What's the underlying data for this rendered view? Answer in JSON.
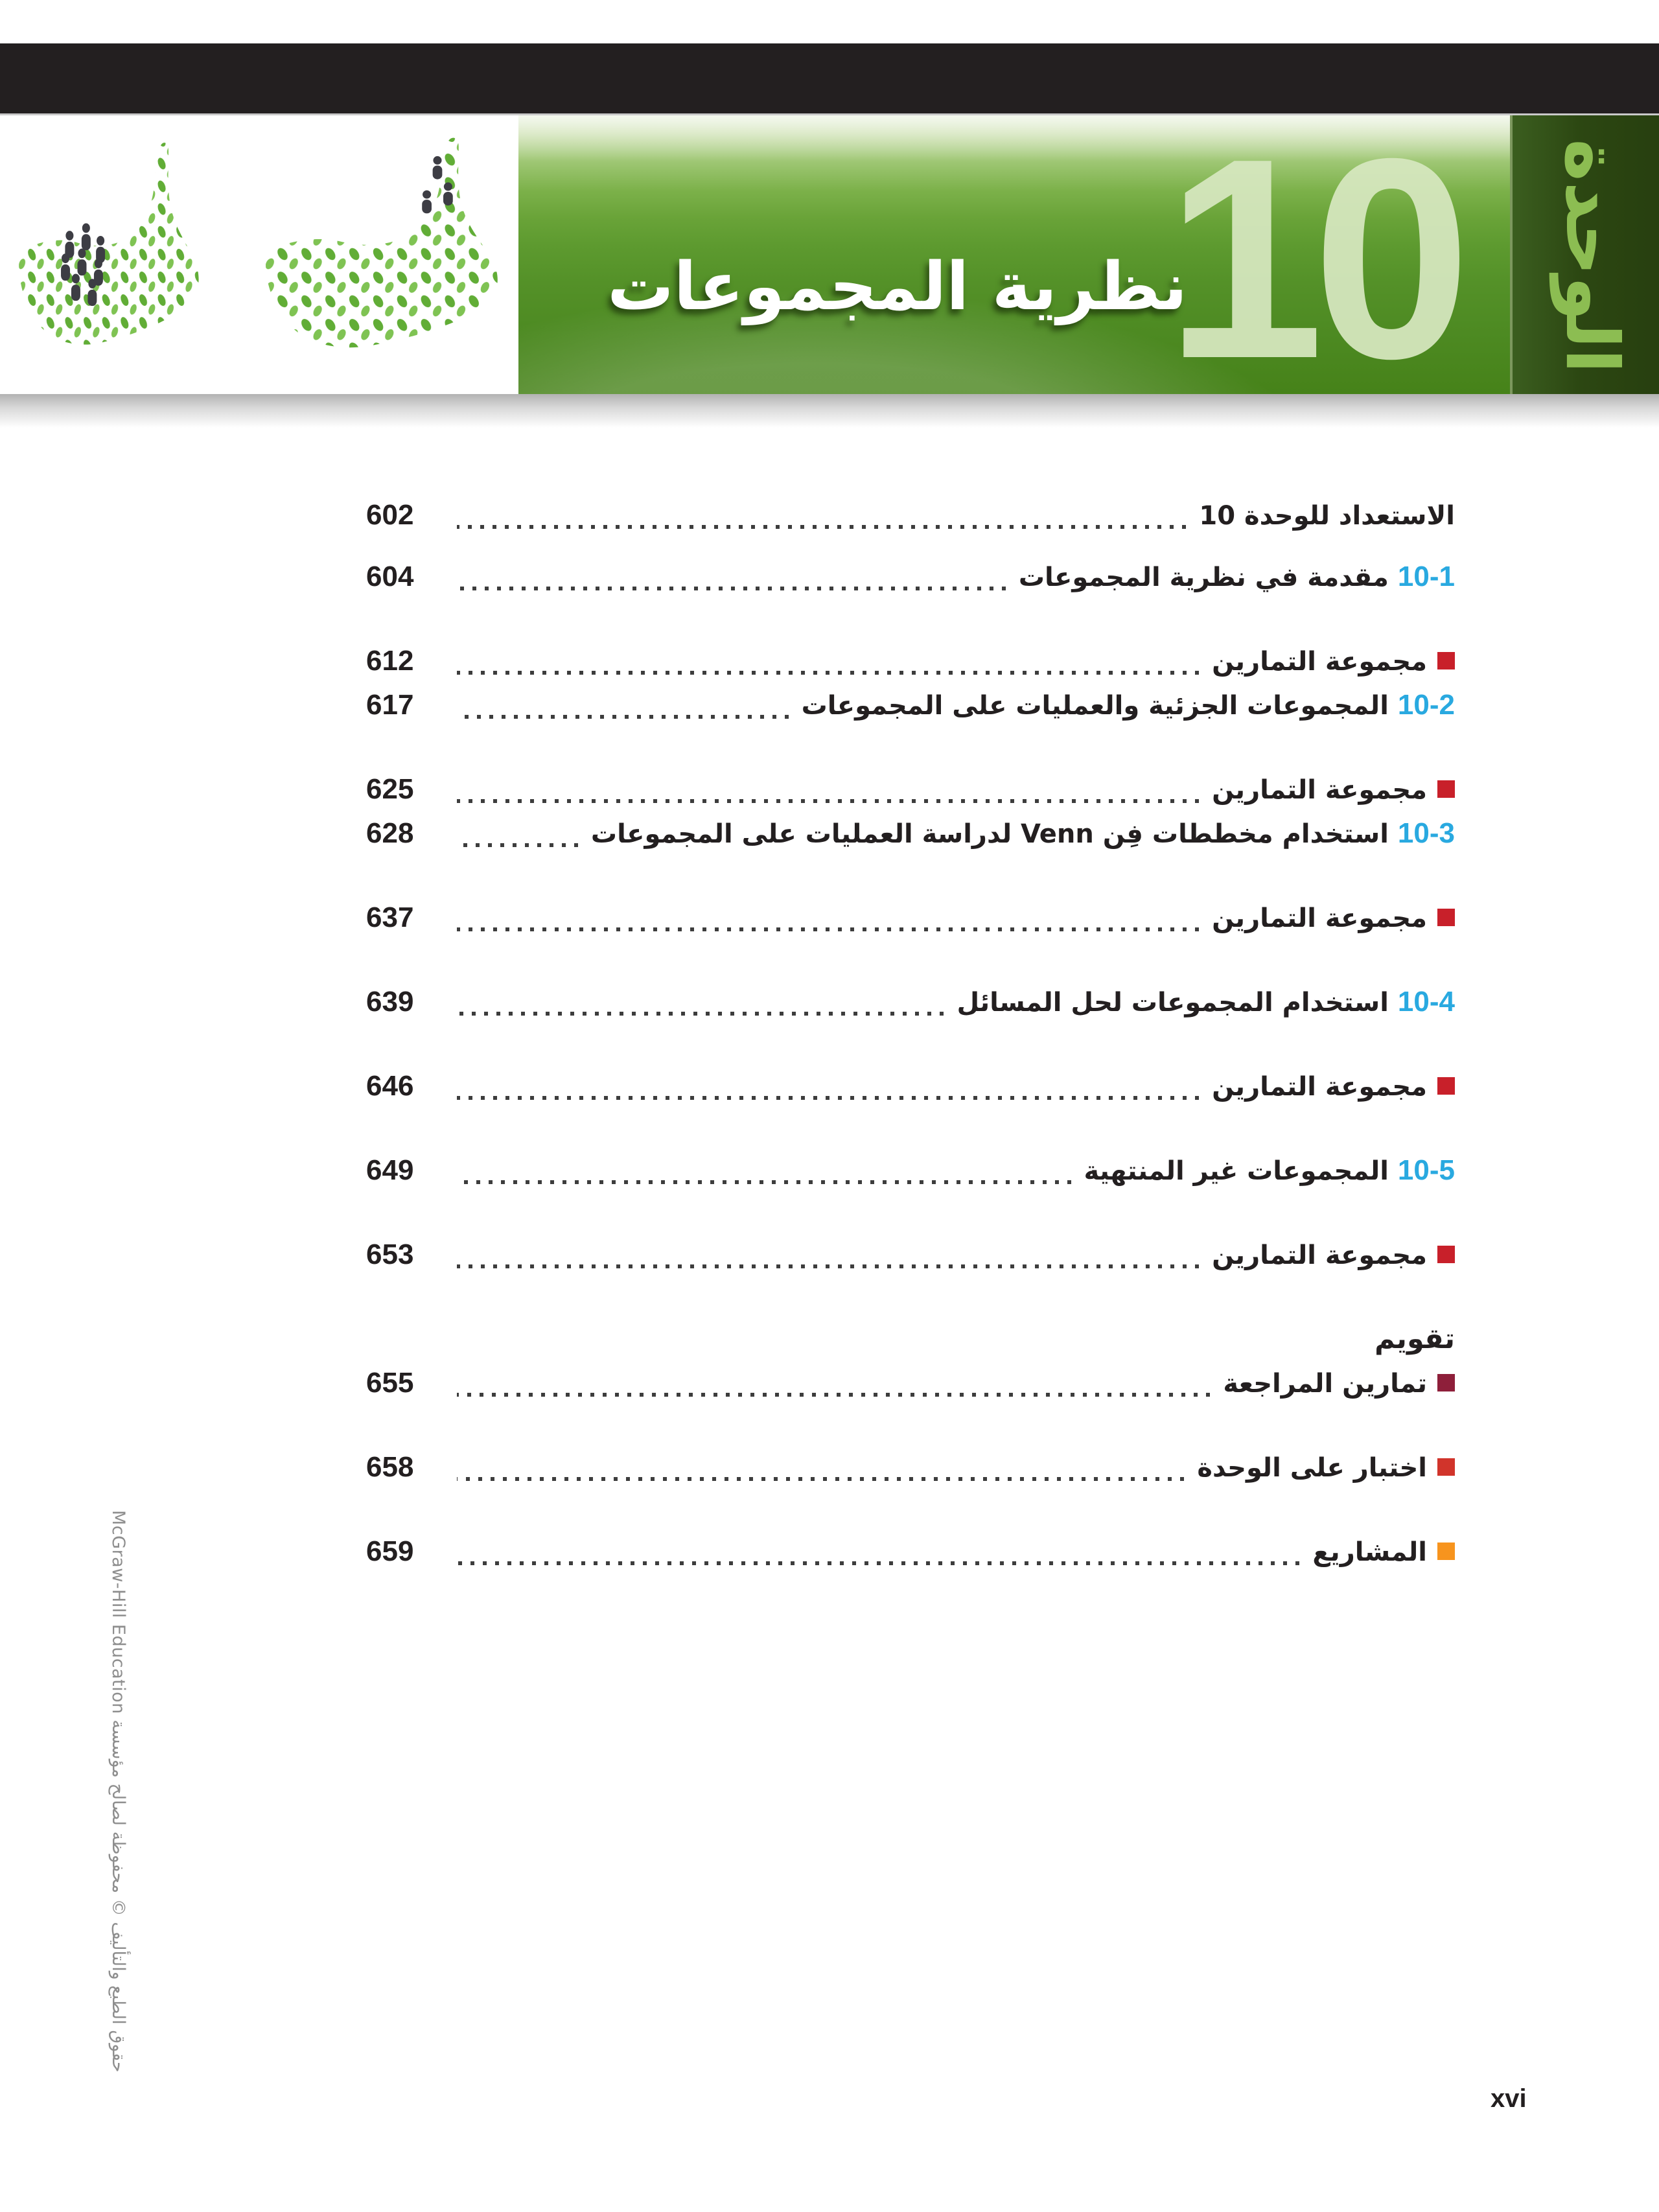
{
  "header": {
    "unit_label": "الوحدة",
    "unit_number": "10",
    "title": "نظرية المجموعات",
    "map_graphic": "uae-map-made-of-green-leaves-and-people"
  },
  "colors": {
    "black_bar": "#231f20",
    "banner_green": "#539027",
    "banner_light_green": "#e7f1da",
    "big_number_green": "#d7e8c0",
    "tab_green_dark": "#2c4712",
    "tab_label_green": "#8cbd52",
    "section_number_blue": "#29a9e0",
    "bullet_red": "#c8202a",
    "bullet_maroon": "#8e1f3a",
    "bullet_orange_red": "#d1342b",
    "bullet_orange": "#f7941e"
  },
  "toc": {
    "rows": [
      {
        "type": "plain",
        "label": "الاستعداد للوحدة 10",
        "page": "602"
      },
      {
        "type": "section",
        "number": "10-1",
        "label": "مقدمة في نظرية المجموعات",
        "page": "604",
        "gap": "after-first"
      },
      {
        "type": "exercise",
        "label": "مجموعة التمارين",
        "page": "612",
        "bullet": "#c8202a"
      },
      {
        "type": "section",
        "number": "10-2",
        "label": "المجموعات الجزئية والعمليات على المجموعات",
        "page": "617",
        "gap": "tight"
      },
      {
        "type": "exercise",
        "label": "مجموعة التمارين",
        "page": "625",
        "bullet": "#c8202a"
      },
      {
        "type": "section",
        "number": "10-3",
        "label": "استخدام مخططات فِن Venn لدراسة العمليات على المجموعات",
        "page": "628",
        "gap": "tight"
      },
      {
        "type": "exercise",
        "label": "مجموعة التمارين",
        "page": "637",
        "bullet": "#c8202a"
      },
      {
        "type": "section",
        "number": "10-4",
        "label": "استخدام المجموعات لحل المسائل",
        "page": "639"
      },
      {
        "type": "exercise",
        "label": "مجموعة التمارين",
        "page": "646",
        "bullet": "#c8202a"
      },
      {
        "type": "section",
        "number": "10-5",
        "label": "المجموعات غير المنتهية",
        "page": "649"
      },
      {
        "type": "exercise",
        "label": "مجموعة التمارين",
        "page": "653",
        "bullet": "#c8202a"
      },
      {
        "type": "heading",
        "label": "تقويم"
      },
      {
        "type": "exercise",
        "label": "تمارين المراجعة",
        "page": "655",
        "bullet": "#8e1f3a",
        "gap": "tight"
      },
      {
        "type": "exercise",
        "label": "اختبار على الوحدة",
        "page": "658",
        "bullet": "#d1342b"
      },
      {
        "type": "exercise",
        "label": "المشاريع",
        "page": "659",
        "bullet": "#f7941e"
      }
    ]
  },
  "footer": {
    "copyright": "حقوق الطبع والتأليف © محفوظة لصالح مؤسسة McGraw-Hill Education",
    "page_number": "xvi"
  }
}
